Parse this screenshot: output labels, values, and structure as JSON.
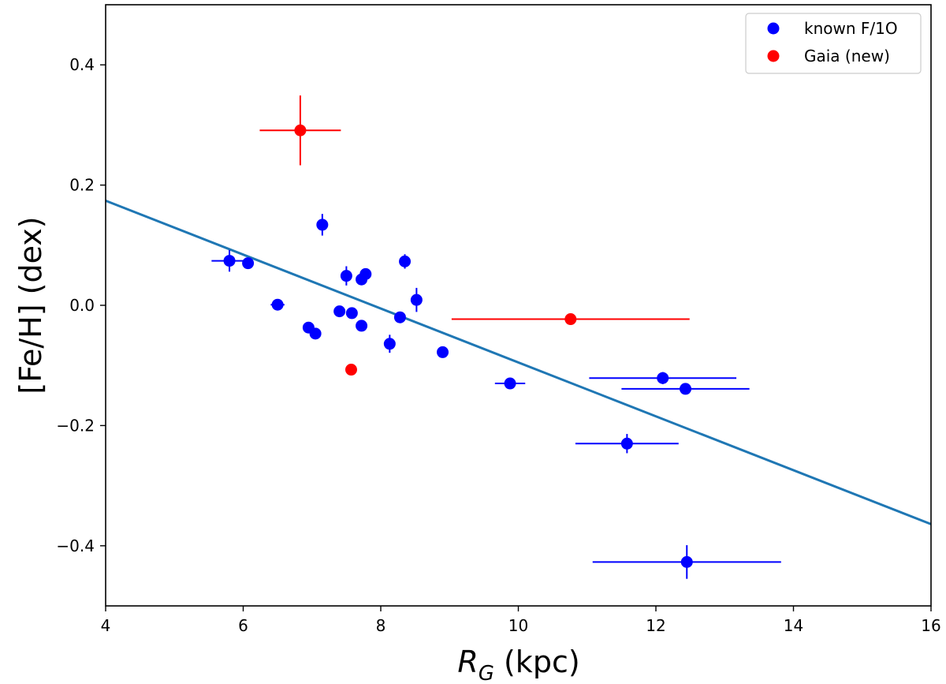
{
  "chart_data": {
    "type": "scatter",
    "title": "",
    "xlabel": "R_G (kpc)",
    "xlabel_main": "R",
    "xlabel_sub": "G",
    "xlabel_unit": " (kpc)",
    "ylabel": "[Fe/H] (dex)",
    "xlim": [
      4,
      16
    ],
    "ylim": [
      -0.5,
      0.5
    ],
    "xticks": [
      4,
      6,
      8,
      10,
      12,
      14,
      16
    ],
    "xtick_labels": [
      "4",
      "6",
      "8",
      "10",
      "12",
      "14",
      "16"
    ],
    "yticks": [
      -0.4,
      -0.2,
      0.0,
      0.2,
      0.4
    ],
    "ytick_labels": [
      "−0.4",
      "−0.2",
      "0.0",
      "0.2",
      "0.4"
    ],
    "grid": false,
    "legend_position": "top-right",
    "series": [
      {
        "name": "known F/1O",
        "color": "#0000ff",
        "points": [
          {
            "x": 5.8,
            "y": 0.074,
            "xerr": 0.26,
            "yerr": 0.018
          },
          {
            "x": 6.07,
            "y": 0.07,
            "xerr": 0.0,
            "yerr": 0.008
          },
          {
            "x": 6.5,
            "y": 0.001,
            "xerr": 0.1,
            "yerr": 0.006
          },
          {
            "x": 6.95,
            "y": -0.037,
            "xerr": 0.0,
            "yerr": 0.008
          },
          {
            "x": 7.05,
            "y": -0.047,
            "xerr": 0.0,
            "yerr": 0.008
          },
          {
            "x": 7.15,
            "y": 0.134,
            "xerr": 0.0,
            "yerr": 0.018
          },
          {
            "x": 7.4,
            "y": -0.01,
            "xerr": 0.0,
            "yerr": 0.006
          },
          {
            "x": 7.5,
            "y": 0.049,
            "xerr": 0.0,
            "yerr": 0.016
          },
          {
            "x": 7.58,
            "y": -0.013,
            "xerr": 0.0,
            "yerr": 0.006
          },
          {
            "x": 7.72,
            "y": 0.043,
            "xerr": 0.0,
            "yerr": 0.006
          },
          {
            "x": 7.72,
            "y": -0.034,
            "xerr": 0.0,
            "yerr": 0.008
          },
          {
            "x": 7.78,
            "y": 0.052,
            "xerr": 0.0,
            "yerr": 0.006
          },
          {
            "x": 8.13,
            "y": -0.064,
            "xerr": 0.0,
            "yerr": 0.015
          },
          {
            "x": 8.28,
            "y": -0.02,
            "xerr": 0.0,
            "yerr": 0.006
          },
          {
            "x": 8.35,
            "y": 0.073,
            "xerr": 0.0,
            "yerr": 0.012
          },
          {
            "x": 8.52,
            "y": 0.009,
            "xerr": 0.0,
            "yerr": 0.02
          },
          {
            "x": 8.9,
            "y": -0.078,
            "xerr": 0.0,
            "yerr": 0.006
          },
          {
            "x": 9.88,
            "y": -0.13,
            "xerr": 0.22,
            "yerr": 0.006
          },
          {
            "x": 11.58,
            "y": -0.23,
            "xerr": 0.75,
            "yerr": 0.016
          },
          {
            "x": 12.1,
            "y": -0.121,
            "xerr": 1.07,
            "yerr": 0.01
          },
          {
            "x": 12.43,
            "y": -0.139,
            "xerr": 0.93,
            "yerr": 0.006
          },
          {
            "x": 12.45,
            "y": -0.427,
            "xerr": 1.37,
            "yerr": 0.028
          }
        ]
      },
      {
        "name": "Gaia (new)",
        "color": "#ff0000",
        "points": [
          {
            "x": 6.83,
            "y": 0.291,
            "xerr": 0.59,
            "yerr": 0.058
          },
          {
            "x": 7.57,
            "y": -0.107,
            "xerr": 0.0,
            "yerr": 0.0
          },
          {
            "x": 10.76,
            "y": -0.023,
            "xerr": 1.73,
            "yerr": 0.0
          }
        ]
      }
    ],
    "fit_line": {
      "color": "#1f77b4",
      "x": [
        4,
        16
      ],
      "y": [
        0.174,
        -0.364
      ]
    }
  }
}
